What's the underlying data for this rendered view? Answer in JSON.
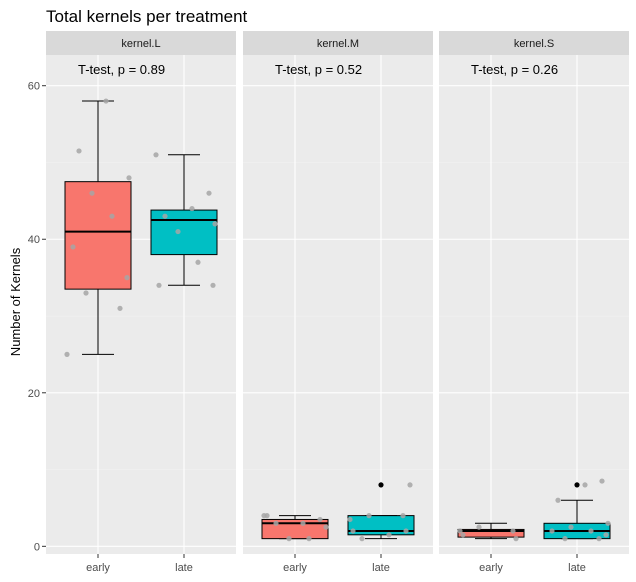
{
  "chart_data": {
    "type": "boxplot",
    "title": "Total kernels per treatment",
    "xlabel": "",
    "ylabel": "Number of Kernels",
    "ylim": [
      -1,
      64
    ],
    "yticks": [
      0,
      20,
      40,
      60
    ],
    "categories": [
      "early",
      "late"
    ],
    "fills": {
      "early": "#F8766D",
      "late": "#00BFC4"
    },
    "grid": true,
    "legend": "none",
    "panels": [
      {
        "strip": "kernel.L",
        "annotation": "T-test, p = 0.89",
        "boxes": [
          {
            "group": "early",
            "whisker_low": 25,
            "q1": 33.5,
            "median": 41,
            "q3": 47.5,
            "whisker_high": 58,
            "outliers": []
          },
          {
            "group": "late",
            "whisker_low": 34,
            "q1": 38,
            "median": 42.5,
            "q3": 43.8,
            "whisker_high": 51,
            "outliers": []
          }
        ],
        "points": [
          {
            "group": "early",
            "values": [
              25,
              31,
              33,
              35,
              39,
              43,
              46,
              48,
              51.5,
              58
            ]
          },
          {
            "group": "late",
            "values": [
              34,
              34,
              37,
              41,
              42,
              43,
              44,
              46,
              51
            ]
          }
        ]
      },
      {
        "strip": "kernel.M",
        "annotation": "T-test, p = 0.52",
        "boxes": [
          {
            "group": "early",
            "whisker_low": 1,
            "q1": 1,
            "median": 3,
            "q3": 3.5,
            "whisker_high": 4,
            "outliers": []
          },
          {
            "group": "late",
            "whisker_low": 1,
            "q1": 1.5,
            "median": 2,
            "q3": 4,
            "whisker_high": 4,
            "outliers": [
              8
            ]
          }
        ],
        "points": [
          {
            "group": "early",
            "values": [
              1,
              1,
              2.5,
              3,
              3,
              3.5,
              4,
              4
            ]
          },
          {
            "group": "late",
            "values": [
              1,
              1.5,
              2,
              2,
              3.5,
              4,
              4,
              8
            ]
          }
        ]
      },
      {
        "strip": "kernel.S",
        "annotation": "T-test, p = 0.26",
        "boxes": [
          {
            "group": "early",
            "whisker_low": 1,
            "q1": 1.2,
            "median": 2,
            "q3": 2.2,
            "whisker_high": 3,
            "outliers": []
          },
          {
            "group": "late",
            "whisker_low": 1,
            "q1": 1,
            "median": 2,
            "q3": 3,
            "whisker_high": 6,
            "outliers": [
              8
            ]
          }
        ],
        "points": [
          {
            "group": "early",
            "values": [
              1,
              1.5,
              2,
              2,
              2.5
            ]
          },
          {
            "group": "late",
            "values": [
              1,
              1,
              1.5,
              2,
              2,
              2.5,
              3,
              6,
              8,
              8.5
            ]
          }
        ]
      }
    ]
  }
}
